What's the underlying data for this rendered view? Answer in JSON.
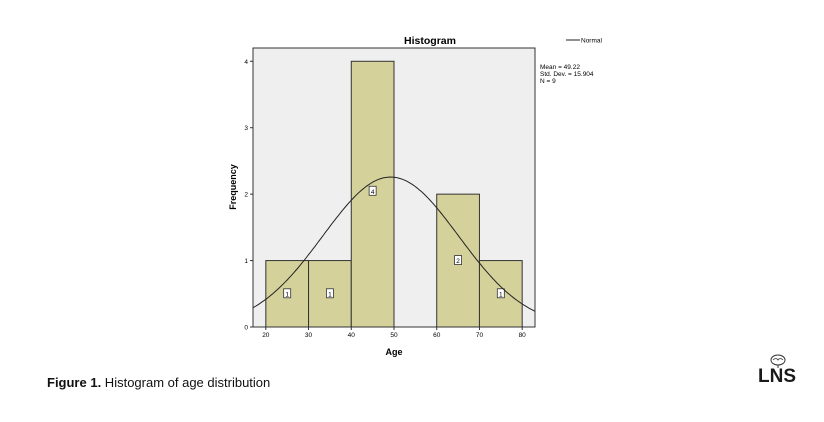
{
  "chart_data": {
    "type": "bar",
    "title": "Histogram",
    "xlabel": "Age",
    "ylabel": "Frequency",
    "bins": [
      {
        "start": 20,
        "end": 30,
        "count": 1
      },
      {
        "start": 30,
        "end": 40,
        "count": 1
      },
      {
        "start": 40,
        "end": 50,
        "count": 4
      },
      {
        "start": 50,
        "end": 60,
        "count": 0
      },
      {
        "start": 60,
        "end": 70,
        "count": 2
      },
      {
        "start": 70,
        "end": 80,
        "count": 1
      }
    ],
    "bar_labels": [
      "1",
      "1",
      "4",
      "2",
      "1"
    ],
    "xticks": [
      20,
      30,
      40,
      50,
      60,
      70,
      80
    ],
    "yticks": [
      0,
      1,
      2,
      3,
      4
    ],
    "xlim": [
      17,
      83
    ],
    "ylim": [
      0,
      4.2
    ],
    "normal_curve": {
      "mean": 49.22,
      "sd": 15.904,
      "n": 9,
      "bin_width": 10
    },
    "legend": {
      "line_label": "Normal",
      "position": "top-right"
    },
    "stats": [
      "Mean = 49.22",
      "Std. Dev. = 15.904",
      "N = 9"
    ],
    "colors": {
      "bar_fill": "#d4d19a",
      "plot_bg": "#efefef",
      "curve": "#222222"
    }
  },
  "caption": {
    "prefix": "Figure 1.",
    "text": " Histogram of age distribution"
  },
  "logo": {
    "text": "LNS"
  }
}
